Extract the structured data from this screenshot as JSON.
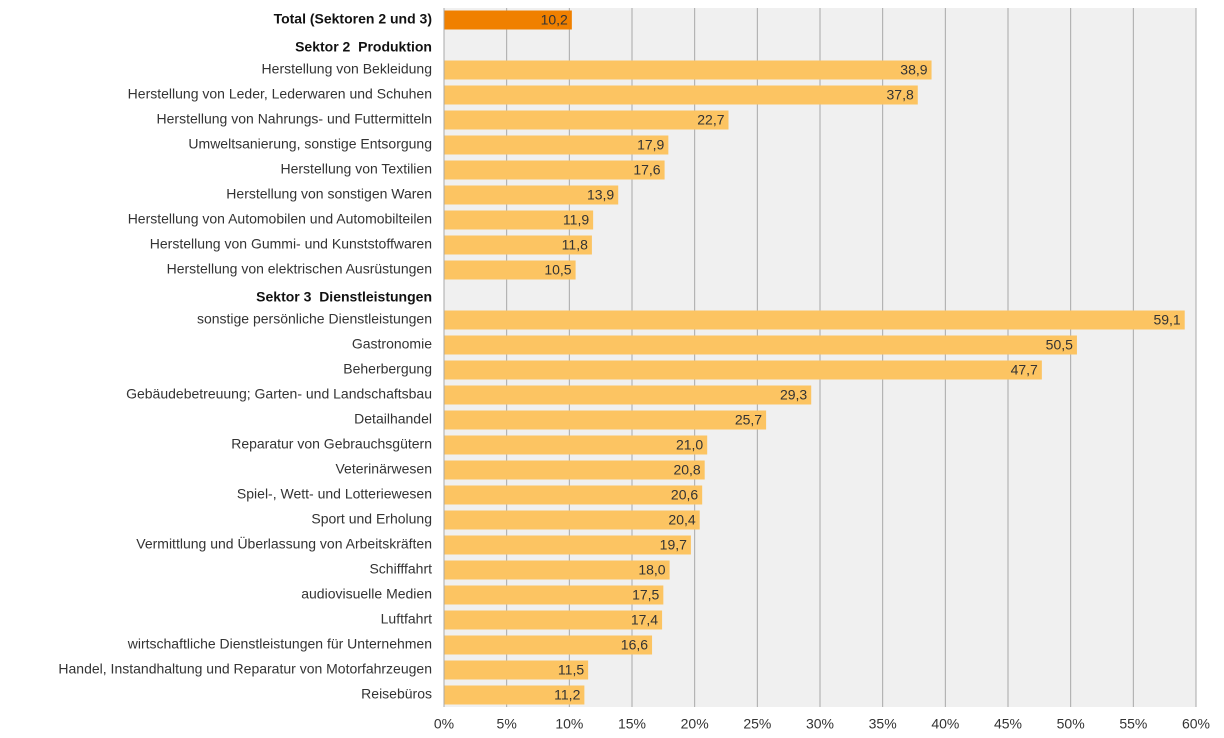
{
  "chart_data": {
    "type": "barh",
    "categories": [
      "Total (Sektoren 2 und 3)",
      "Sektor 2  Produktion",
      "Herstellung von Bekleidung",
      "Herstellung von Leder, Lederwaren und Schuhen",
      "Herstellung von Nahrungs- und Futtermitteln",
      "Umweltsanierung, sonstige Entsorgung",
      "Herstellung von Textilien",
      "Herstellung von sonstigen Waren",
      "Herstellung von Automobilen und Automobilteilen",
      "Herstellung von Gummi- und Kunststoffwaren",
      "Herstellung von elektrischen Ausrüstungen",
      "Sektor 3  Dienstleistungen",
      "sonstige persönliche Dienstleistungen",
      "Gastronomie",
      "Beherbergung",
      "Gebäudebetreuung; Garten- und Landschaftsbau",
      "Detailhandel",
      "Reparatur von Gebrauchsgütern",
      "Veterinärwesen",
      "Spiel-, Wett- und Lotteriewesen",
      "Sport und Erholung",
      "Vermittlung und Überlassung von Arbeitskräften",
      "Schifffahrt",
      "audiovisuelle Medien",
      "Luftfahrt",
      "wirtschaftliche Dienstleistungen für Unternehmen",
      "Handel, Instandhaltung und Reparatur von Motorfahrzeugen",
      "Reisebüros"
    ],
    "values": [
      10.2,
      null,
      38.9,
      37.8,
      22.7,
      17.9,
      17.6,
      13.9,
      11.9,
      11.8,
      10.5,
      null,
      59.1,
      50.5,
      47.7,
      29.3,
      25.7,
      21.0,
      20.8,
      20.6,
      20.4,
      19.7,
      18.0,
      17.5,
      17.4,
      16.6,
      11.5,
      11.2
    ],
    "value_labels": [
      "10,2",
      null,
      "38,9",
      "37,8",
      "22,7",
      "17,9",
      "17,6",
      "13,9",
      "11,9",
      "11,8",
      "10,5",
      null,
      "59,1",
      "50,5",
      "47,7",
      "29,3",
      "25,7",
      "21,0",
      "20,8",
      "20,6",
      "20,4",
      "19,7",
      "18,0",
      "17,5",
      "17,4",
      "16,6",
      "11,5",
      "11,2"
    ],
    "colors": [
      "#f08000",
      null,
      "#fcc462",
      "#fcc462",
      "#fcc462",
      "#fcc462",
      "#fcc462",
      "#fcc462",
      "#fcc462",
      "#fcc462",
      "#fcc462",
      null,
      "#fcc462",
      "#fcc462",
      "#fcc462",
      "#fcc462",
      "#fcc462",
      "#fcc462",
      "#fcc462",
      "#fcc462",
      "#fcc462",
      "#fcc462",
      "#fcc462",
      "#fcc462",
      "#fcc462",
      "#fcc462",
      "#fcc462",
      "#fcc462"
    ],
    "xlim": [
      0,
      60
    ],
    "xticks": [
      {
        "value": 0,
        "label": "0%"
      },
      {
        "value": 5,
        "label": "5%"
      },
      {
        "value": 10,
        "label": "10%"
      },
      {
        "value": 15,
        "label": "15%"
      },
      {
        "value": 20,
        "label": "20%"
      },
      {
        "value": 25,
        "label": "25%"
      },
      {
        "value": 30,
        "label": "30%"
      },
      {
        "value": 35,
        "label": "35%"
      },
      {
        "value": 40,
        "label": "40%"
      },
      {
        "value": 45,
        "label": "45%"
      },
      {
        "value": 50,
        "label": "50%"
      },
      {
        "value": 55,
        "label": "55%"
      },
      {
        "value": 60,
        "label": "60%"
      }
    ],
    "grid": true
  }
}
